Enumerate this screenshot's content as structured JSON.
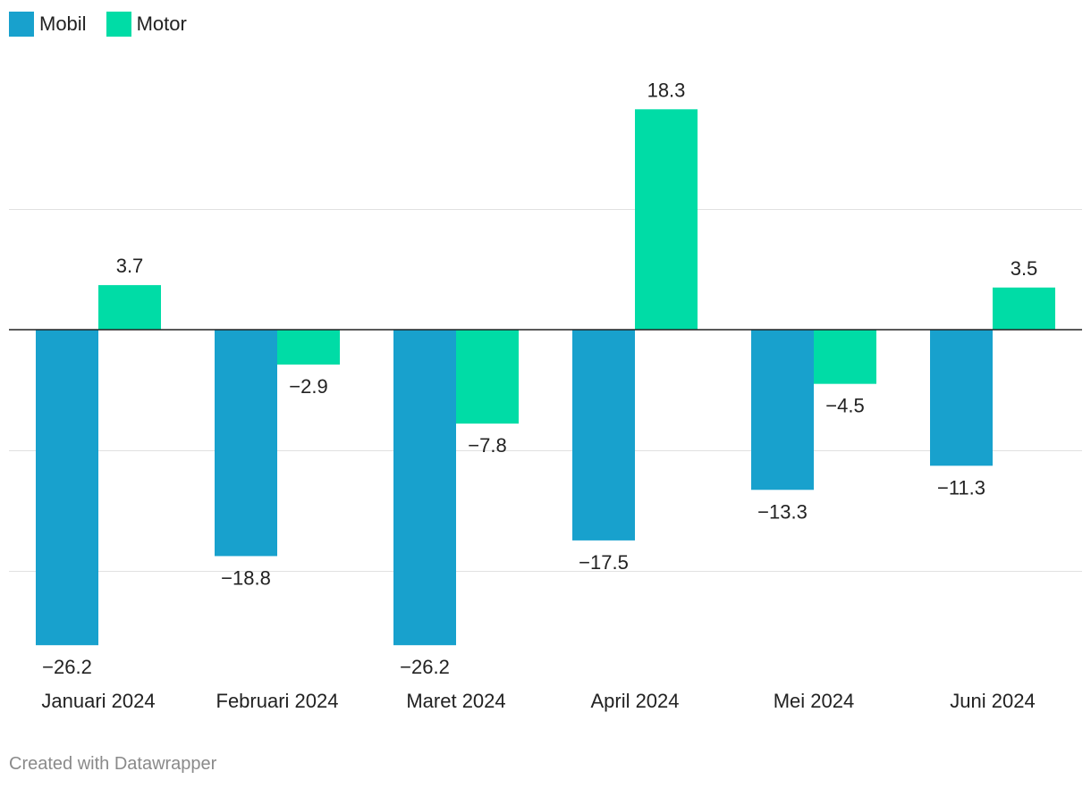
{
  "chart_data": {
    "type": "bar",
    "categories": [
      "Januari 2024",
      "Februari 2024",
      "Maret 2024",
      "April 2024",
      "Mei 2024",
      "Juni 2024"
    ],
    "series": [
      {
        "name": "Mobil",
        "color": "#18a1cd",
        "values": [
          -26.2,
          -18.8,
          -26.2,
          -17.5,
          -13.3,
          -11.3
        ]
      },
      {
        "name": "Motor",
        "color": "#00dca6",
        "values": [
          3.7,
          -2.9,
          -7.8,
          18.3,
          -4.5,
          3.5
        ]
      }
    ],
    "gridlines": [
      10,
      -10,
      -20
    ],
    "ylim": [
      -27.4,
      22.8
    ],
    "legend_position": "top-left"
  },
  "footer": {
    "credit": "Created with Datawrapper"
  }
}
